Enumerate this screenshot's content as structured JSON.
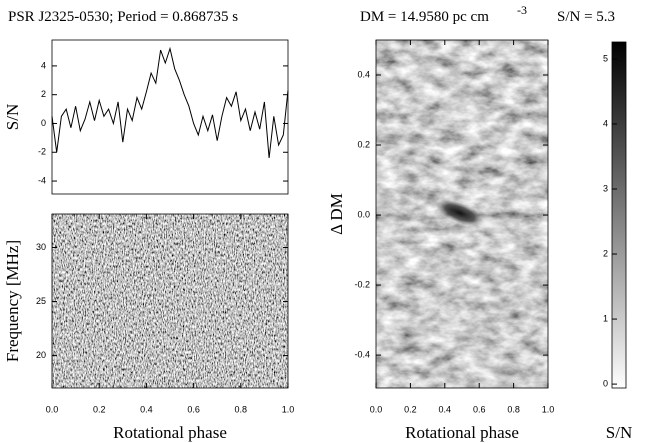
{
  "header": {
    "title": "PSR J2325-0530;  Period = 0.868735 s",
    "dm": "DM = 14.9580 pc cm",
    "dm_exp": "-3",
    "snr": "S/N =  5.3"
  },
  "chart_data": [
    {
      "type": "line",
      "ylabel": "S/N",
      "color": "#000000",
      "x": [
        0,
        0.02,
        0.04,
        0.06,
        0.08,
        0.1,
        0.12,
        0.14,
        0.16,
        0.18,
        0.2,
        0.22,
        0.24,
        0.26,
        0.28,
        0.3,
        0.32,
        0.34,
        0.36,
        0.38,
        0.4,
        0.42,
        0.44,
        0.46,
        0.48,
        0.5,
        0.52,
        0.54,
        0.56,
        0.58,
        0.6,
        0.62,
        0.64,
        0.66,
        0.68,
        0.7,
        0.72,
        0.74,
        0.76,
        0.78,
        0.8,
        0.82,
        0.84,
        0.86,
        0.88,
        0.9,
        0.92,
        0.94,
        0.96,
        0.98,
        1
      ],
      "values": [
        0.5,
        -2,
        0.5,
        1,
        -0.3,
        1.2,
        -0.5,
        0.3,
        1.5,
        0.2,
        1.6,
        0.5,
        1,
        0,
        1.5,
        -1.3,
        1,
        0.2,
        1.8,
        1,
        2.2,
        3.5,
        2.8,
        5.1,
        4.2,
        5.2,
        3.8,
        3,
        2,
        1.2,
        0,
        -0.8,
        0.5,
        -0.5,
        0.6,
        -1.2,
        0.5,
        1.8,
        1.2,
        2.2,
        0.2,
        1,
        -0.5,
        0.8,
        -0.4,
        1.5,
        -2.4,
        0.5,
        -1.5,
        -0.8,
        2.3
      ],
      "xlim": [
        0,
        1
      ],
      "ylim": [
        -4.9,
        5.8
      ],
      "yticks": [
        -4,
        -2,
        0,
        2,
        4
      ]
    },
    {
      "type": "image",
      "ylabel": "Frequency [MHz]",
      "xlabel": "Rotational phase",
      "xlim": [
        0,
        1
      ],
      "ylim": [
        17,
        33.1
      ],
      "xticks": [
        {
          "value": 0,
          "label": "0.0"
        },
        0.2,
        0.4,
        0.6,
        0.8,
        {
          "value": 1,
          "label": "1.0"
        }
      ],
      "yticks": [
        20,
        25,
        30
      ]
    },
    {
      "type": "image",
      "ylabel": "Δ DM",
      "xlabel": "Rotational phase",
      "xlim": [
        0,
        1
      ],
      "ylim": [
        -0.494,
        0.5
      ],
      "xticks": [
        {
          "value": 0,
          "label": "0.0"
        },
        0.2,
        0.4,
        0.6,
        0.8,
        {
          "value": 1,
          "label": "1.0"
        }
      ],
      "yticks": [
        -0.4,
        -0.2,
        {
          "value": 0,
          "label": "0.0"
        },
        0.2,
        0.4
      ]
    },
    {
      "type": "colorbar",
      "xlabel": "S/N",
      "ylim": [
        -0.06,
        5.26
      ],
      "yticks": [
        0,
        1,
        2,
        3,
        4,
        5
      ]
    }
  ]
}
